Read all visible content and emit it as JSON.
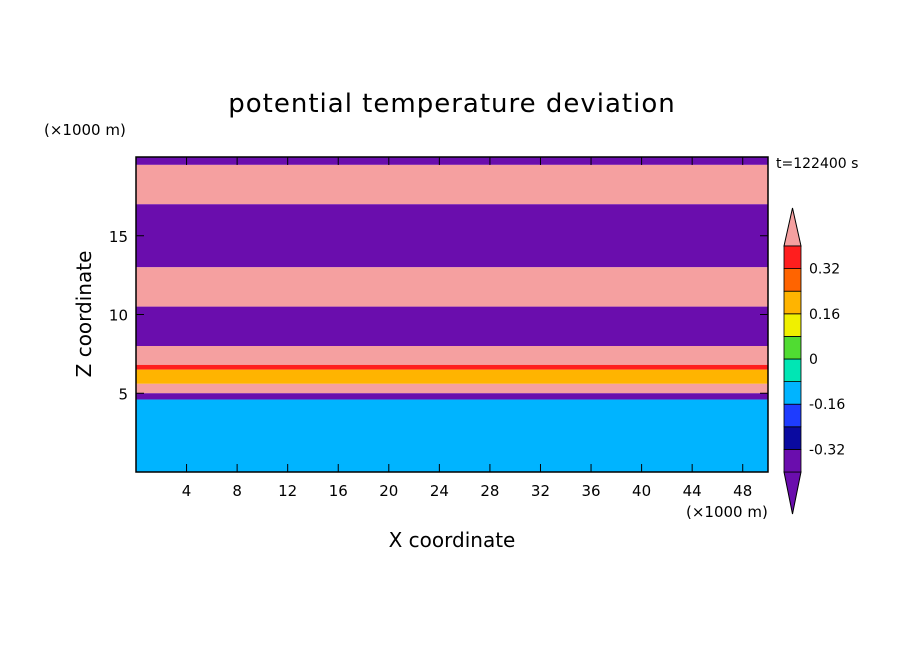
{
  "chart_data": {
    "type": "heatmap",
    "title": "potential temperature deviation",
    "xlabel": "X coordinate",
    "ylabel": "Z coordinate",
    "x_unit": "(×1000 m)",
    "y_unit": "(×1000 m)",
    "time_label": "t=122400 s",
    "xlim": [
      0,
      50
    ],
    "ylim": [
      0,
      20
    ],
    "x_ticks": [
      4,
      8,
      12,
      16,
      20,
      24,
      28,
      32,
      36,
      40,
      44,
      48
    ],
    "y_ticks": [
      5,
      10,
      15
    ],
    "colorbar": {
      "levels": [
        -0.4,
        -0.32,
        -0.24,
        -0.16,
        -0.08,
        0,
        0.08,
        0.16,
        0.24,
        0.32,
        0.4
      ],
      "colors": [
        "#6a0dad",
        "#0a0aa0",
        "#1e3cff",
        "#00b4ff",
        "#00e6b4",
        "#50dc32",
        "#f0f000",
        "#ffb400",
        "#ff6400",
        "#ff1e1e",
        "#f5a0a0"
      ],
      "tick_labels": [
        "0.32",
        "0.16",
        "0",
        "-0.16",
        "-0.32"
      ],
      "tick_values": [
        0.32,
        0.16,
        0,
        -0.16,
        -0.32
      ],
      "extend": "both"
    },
    "bands": [
      {
        "z_range": [
          19.5,
          20
        ],
        "value": -0.5
      },
      {
        "z_range": [
          17,
          19.5
        ],
        "value": 0.45
      },
      {
        "z_range": [
          13,
          17
        ],
        "value": -0.45
      },
      {
        "z_range": [
          10.5,
          13
        ],
        "value": 0.45
      },
      {
        "z_range": [
          8,
          10.5
        ],
        "value": -0.45
      },
      {
        "z_range": [
          6.8,
          8
        ],
        "value": 0.45
      },
      {
        "z_range": [
          6.5,
          6.8
        ],
        "value": 0.36
      },
      {
        "z_range": [
          5.6,
          6.5
        ],
        "value": 0.2
      },
      {
        "z_range": [
          5.0,
          5.6
        ],
        "value": 0.45
      },
      {
        "z_range": [
          4.6,
          5.0
        ],
        "value": -0.45
      },
      {
        "z_range": [
          0,
          4.6
        ],
        "value": -0.1
      }
    ]
  }
}
